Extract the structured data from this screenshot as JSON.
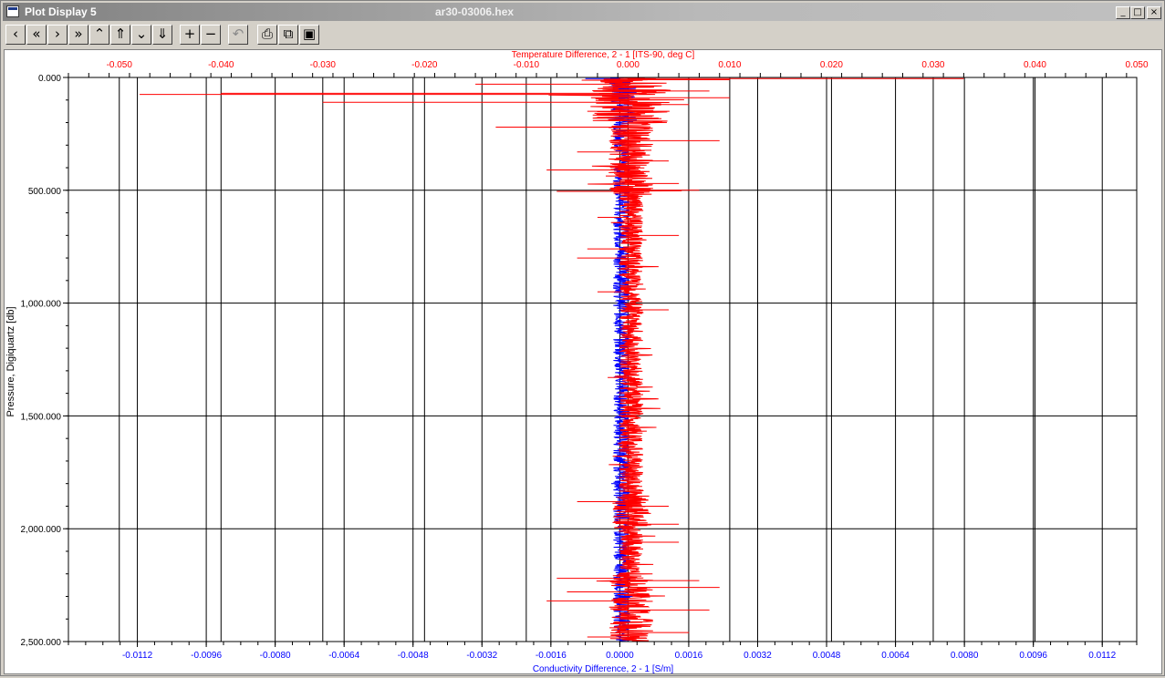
{
  "window": {
    "title": "Plot Display 5",
    "document": "ar30-03006.hex",
    "controls": {
      "minimize": "_",
      "maximize": "□",
      "close": "×"
    }
  },
  "toolbar": {
    "buttons": [
      {
        "name": "previous",
        "glyph": "‹"
      },
      {
        "name": "first",
        "glyph": "«"
      },
      {
        "name": "next",
        "glyph": "›"
      },
      {
        "name": "last",
        "glyph": "»"
      },
      {
        "name": "up",
        "glyph": "⌃"
      },
      {
        "name": "top",
        "glyph": "⇑"
      },
      {
        "name": "down",
        "glyph": "⌄"
      },
      {
        "name": "bottom",
        "glyph": "⇓"
      },
      {
        "name": "zoom-in",
        "glyph": "+"
      },
      {
        "name": "zoom-out",
        "glyph": "−"
      },
      {
        "name": "undo",
        "glyph": "↶"
      },
      {
        "name": "print",
        "glyph": "⎙"
      },
      {
        "name": "copy",
        "glyph": "⧉"
      },
      {
        "name": "save",
        "glyph": "▣"
      }
    ]
  },
  "chart_data": {
    "type": "line",
    "top_axis": {
      "label": "Temperature Difference, 2 - 1 [ITS-90, deg C]",
      "range": [
        -0.055,
        0.05
      ],
      "ticks": [
        "-0.050",
        "-0.040",
        "-0.030",
        "-0.020",
        "-0.010",
        "0.000",
        "0.010",
        "0.020",
        "0.030",
        "0.040",
        "0.050"
      ],
      "tick_values": [
        -0.05,
        -0.04,
        -0.03,
        -0.02,
        -0.01,
        0.0,
        0.01,
        0.02,
        0.03,
        0.04,
        0.05
      ],
      "color": "#ff0000"
    },
    "bottom_axis": {
      "label": "Conductivity Difference, 2 - 1 [S/m]",
      "range": [
        -0.0128,
        0.012
      ],
      "ticks": [
        "-0.0112",
        "-0.0096",
        "-0.0080",
        "-0.0064",
        "-0.0048",
        "-0.0032",
        "-0.0016",
        "0.0000",
        "0.0016",
        "0.0032",
        "0.0048",
        "0.0064",
        "0.0080",
        "0.0096",
        "0.0112"
      ],
      "tick_values": [
        -0.0112,
        -0.0096,
        -0.008,
        -0.0064,
        -0.0048,
        -0.0032,
        -0.0016,
        0.0,
        0.0016,
        0.0032,
        0.0048,
        0.0064,
        0.008,
        0.0096,
        0.0112
      ],
      "color": "#0000ff"
    },
    "left_axis": {
      "label": "Pressure, Digiquartz [db]",
      "range": [
        0,
        2500
      ],
      "ticks": [
        "0.000",
        "500.000",
        "1,000.000",
        "1,500.000",
        "2,000.000",
        "2,500.000"
      ],
      "tick_values": [
        0,
        500,
        1000,
        1500,
        2000,
        2500
      ],
      "inverted": true
    },
    "grid": true,
    "series": [
      {
        "color": "#ff0000",
        "axis": "top",
        "points": [
          {
            "p": 5,
            "v": 0.033
          },
          {
            "p": 10,
            "v": 0.01
          },
          {
            "p": 30,
            "v": -0.015
          },
          {
            "p": 60,
            "v": 0.008
          },
          {
            "p": 70,
            "v": -0.04
          },
          {
            "p": 75,
            "v": -0.048
          },
          {
            "p": 90,
            "v": 0.01
          },
          {
            "p": 110,
            "v": -0.03
          },
          {
            "p": 120,
            "v": 0.006
          },
          {
            "p": 150,
            "v": -0.004
          },
          {
            "p": 180,
            "v": 0.003
          },
          {
            "p": 220,
            "v": -0.013
          },
          {
            "p": 280,
            "v": 0.009
          },
          {
            "p": 330,
            "v": -0.005
          },
          {
            "p": 370,
            "v": 0.004
          },
          {
            "p": 410,
            "v": -0.008
          },
          {
            "p": 470,
            "v": 0.005
          },
          {
            "p": 500,
            "v": 0.007
          },
          {
            "p": 505,
            "v": -0.007
          },
          {
            "p": 620,
            "v": -0.003
          },
          {
            "p": 700,
            "v": 0.005
          },
          {
            "p": 760,
            "v": -0.004
          },
          {
            "p": 800,
            "v": -0.005
          },
          {
            "p": 950,
            "v": -0.003
          },
          {
            "p": 1030,
            "v": 0.004
          },
          {
            "p": 1330,
            "v": -0.002
          },
          {
            "p": 1880,
            "v": -0.005
          },
          {
            "p": 1900,
            "v": 0.004
          },
          {
            "p": 1980,
            "v": 0.005
          },
          {
            "p": 2060,
            "v": 0.005
          },
          {
            "p": 2220,
            "v": -0.007
          },
          {
            "p": 2230,
            "v": 0.007
          },
          {
            "p": 2260,
            "v": 0.009
          },
          {
            "p": 2280,
            "v": -0.006
          },
          {
            "p": 2320,
            "v": -0.008
          },
          {
            "p": 2360,
            "v": 0.008
          },
          {
            "p": 2460,
            "v": 0.006
          },
          {
            "p": 2480,
            "v": -0.004
          }
        ]
      },
      {
        "color": "#0000ff",
        "axis": "bottom",
        "points": [
          {
            "p": 5,
            "v": -0.0008
          },
          {
            "p": 100,
            "v": 0.0003
          },
          {
            "p": 300,
            "v": 0.0002
          },
          {
            "p": 700,
            "v": 0.0001
          },
          {
            "p": 1300,
            "v": 0.0002
          },
          {
            "p": 1800,
            "v": -0.0002
          },
          {
            "p": 2300,
            "v": 0.0003
          },
          {
            "p": 2500,
            "v": 0.0001
          }
        ]
      }
    ]
  }
}
